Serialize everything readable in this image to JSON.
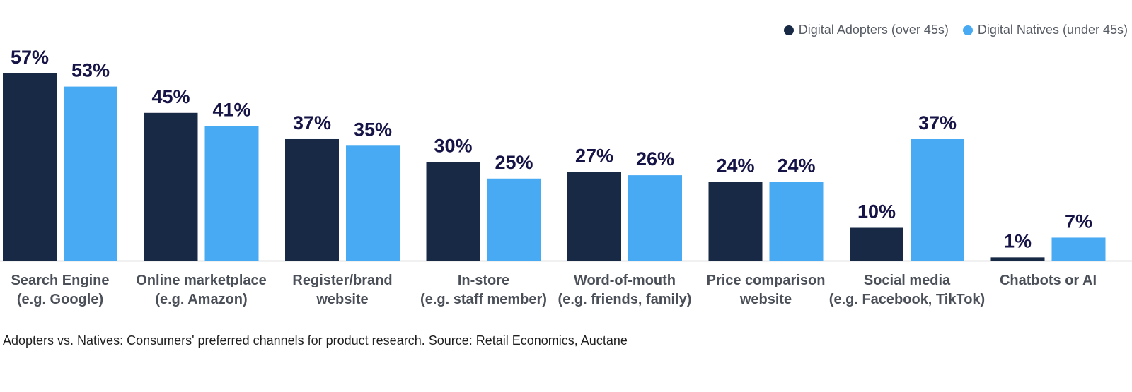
{
  "colors": {
    "adopters": "#182945",
    "natives": "#47aaf2",
    "axis": "#c8c8c8",
    "label": "#161447"
  },
  "legend": {
    "adopters": "Digital Adopters (over 45s)",
    "natives": "Digital Natives (under 45s)"
  },
  "caption": "Adopters vs. Natives: Consumers' preferred channels for product research. Source: Retail Economics, Auctane",
  "chart_data": {
    "type": "bar",
    "categories": [
      [
        "Search Engine",
        "(e.g. Google)"
      ],
      [
        "Online marketplace",
        "(e.g. Amazon)"
      ],
      [
        "Register/brand",
        "website"
      ],
      [
        "In-store",
        "(e.g. staff member)"
      ],
      [
        "Word-of-mouth",
        "(e.g. friends, family)"
      ],
      [
        "Price comparison",
        "website"
      ],
      [
        "Social media",
        "(e.g. Facebook, TikTok)"
      ],
      [
        "Chatbots or AI"
      ]
    ],
    "series": [
      {
        "name": "Digital Adopters (over 45s)",
        "values": [
          57,
          45,
          37,
          30,
          27,
          24,
          10,
          1
        ]
      },
      {
        "name": "Digital Natives (under 45s)",
        "values": [
          53,
          41,
          35,
          25,
          26,
          24,
          37,
          7
        ]
      }
    ],
    "value_suffix": "%",
    "ylim": [
      0,
      57
    ],
    "grid": false,
    "legend_position": "top-right"
  }
}
